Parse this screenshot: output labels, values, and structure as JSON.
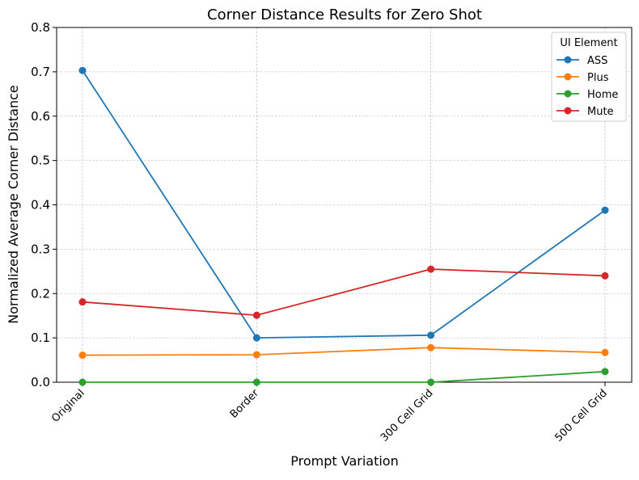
{
  "chart_data": {
    "type": "line",
    "title": "Corner Distance Results for Zero Shot",
    "xlabel": "Prompt Variation",
    "ylabel": "Normalized Average Corner Distance",
    "categories": [
      "Original",
      "Border",
      "300 Cell Grid",
      "500 Cell Grid"
    ],
    "ylim": [
      0,
      0.8
    ],
    "yticks": [
      "0.0",
      "0.1",
      "0.2",
      "0.3",
      "0.4",
      "0.5",
      "0.6",
      "0.7",
      "0.8"
    ],
    "grid": true,
    "legend": {
      "title": "UI Element",
      "placement": "top-right"
    },
    "series": [
      {
        "name": "ASS",
        "color": "#1f77b4",
        "values": [
          0.703,
          0.1,
          0.106,
          0.388
        ]
      },
      {
        "name": "Plus",
        "color": "#ff7f0e",
        "values": [
          0.061,
          0.062,
          0.078,
          0.067
        ]
      },
      {
        "name": "Home",
        "color": "#2ca02c",
        "values": [
          0.0,
          0.0,
          0.0,
          0.024
        ]
      },
      {
        "name": "Mute",
        "color": "#d62728",
        "values": [
          0.181,
          0.151,
          0.255,
          0.24
        ]
      }
    ]
  }
}
